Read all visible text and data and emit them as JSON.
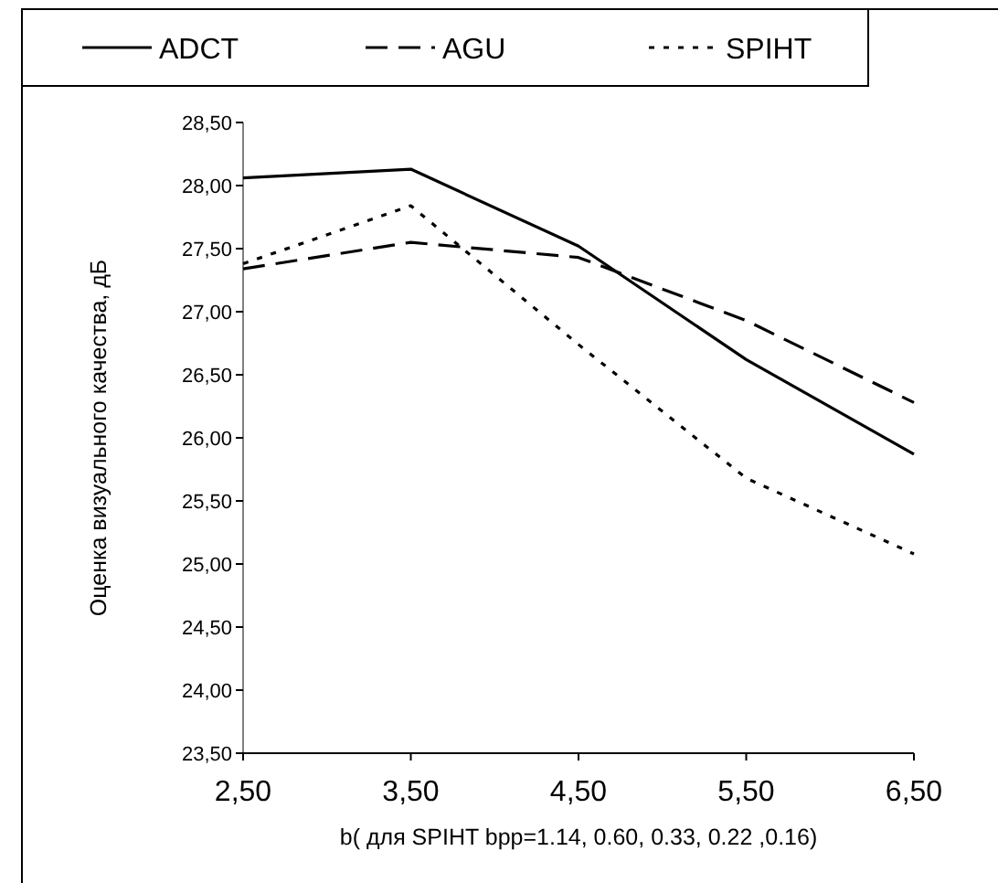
{
  "chart_data": {
    "type": "line",
    "xlabel": "b( для SPIHT bpp=1.14, 0.60, 0.33, 0.22 ,0.16)",
    "ylabel": "Оценка визуального качества, дБ",
    "x": [
      2.5,
      3.5,
      4.5,
      5.5,
      6.5
    ],
    "xlim": [
      2.5,
      6.5
    ],
    "xticks": [
      {
        "value": 2.5,
        "label": "2,50"
      },
      {
        "value": 3.5,
        "label": "3,50"
      },
      {
        "value": 4.5,
        "label": "4,50"
      },
      {
        "value": 5.5,
        "label": "5,50"
      },
      {
        "value": 6.5,
        "label": "6,50"
      }
    ],
    "ylim": [
      23.5,
      28.5
    ],
    "yticks": [
      {
        "value": 23.5,
        "label": "23,50"
      },
      {
        "value": 24,
        "label": "24,00"
      },
      {
        "value": 24.5,
        "label": "24,50"
      },
      {
        "value": 25,
        "label": "25,00"
      },
      {
        "value": 25.5,
        "label": "25,50"
      },
      {
        "value": 26,
        "label": "26,00"
      },
      {
        "value": 26.5,
        "label": "26,50"
      },
      {
        "value": 27,
        "label": "27,00"
      },
      {
        "value": 27.5,
        "label": "27,50"
      },
      {
        "value": 28,
        "label": "28,00"
      },
      {
        "value": 28.5,
        "label": "28,50"
      }
    ],
    "legend": "top",
    "grid": false,
    "marker": "none",
    "series": [
      {
        "name": "ADCT",
        "color": "#000000",
        "line_style": "solid",
        "values": [
          28.06,
          28.13,
          27.52,
          26.62,
          25.87
        ]
      },
      {
        "name": "AGU",
        "color": "#000000",
        "line_style": "dashed",
        "values": [
          27.34,
          27.55,
          27.43,
          26.93,
          26.28
        ]
      },
      {
        "name": "SPIHT",
        "color": "#000000",
        "line_style": "dotted",
        "values": [
          27.38,
          27.84,
          26.74,
          25.68,
          25.08
        ]
      }
    ]
  }
}
